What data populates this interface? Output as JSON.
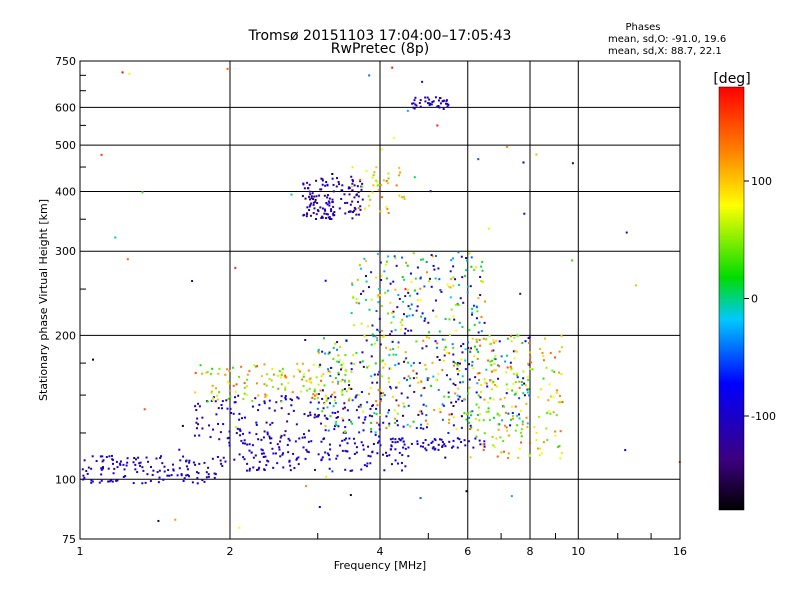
{
  "chart_data": {
    "type": "scatter",
    "title": "Tromsø 20151103 17:04:00–17:05:43",
    "subtitle": "RwPretec (8p)",
    "xlabel": "Frequency [MHz]",
    "ylabel": "Stationary phase Virtual Height [km]",
    "x_scale": "log",
    "y_scale": "log",
    "xlim": [
      1,
      16
    ],
    "ylim": [
      75,
      750
    ],
    "x_ticks": [
      1,
      2,
      4,
      6,
      8,
      10,
      16
    ],
    "x_tick_labels": [
      "1",
      "2",
      "4",
      "6",
      "8",
      "10",
      "16"
    ],
    "y_ticks": [
      75,
      100,
      200,
      300,
      400,
      500,
      600,
      750
    ],
    "y_tick_labels": [
      "75",
      "100",
      "200",
      "300",
      "400",
      "500",
      "600",
      "750"
    ],
    "grid": true,
    "phases_header": "Phases",
    "phases_stats": [
      "mean, sd,O: -91.0, 19.6",
      "mean, sd,X:  88.7, 22.1"
    ],
    "colorbar": {
      "label": "[deg]",
      "ticks": [
        100,
        0,
        -100
      ],
      "tick_labels": [
        "100",
        "0",
        "-100"
      ],
      "range": [
        -180,
        180
      ]
    },
    "series": [
      {
        "x_range": [
          1.0,
          1.9
        ],
        "y_range": [
          98,
          112
        ],
        "phase_range": [
          -120,
          -80
        ],
        "count": 130
      },
      {
        "x_range": [
          1.9,
          4.6
        ],
        "y_range": [
          104,
          122
        ],
        "phase_range": [
          -125,
          -80
        ],
        "count": 150
      },
      {
        "x_range": [
          4.2,
          6.5
        ],
        "y_range": [
          115,
          122
        ],
        "phase_range": [
          -120,
          -85
        ],
        "count": 60
      },
      {
        "x_range": [
          1.7,
          4.0
        ],
        "y_range": [
          120,
          150
        ],
        "phase_range": [
          -135,
          -70
        ],
        "count": 160
      },
      {
        "x_range": [
          1.7,
          3.5
        ],
        "y_range": [
          145,
          175
        ],
        "phase_range": [
          20,
          150
        ],
        "count": 140
      },
      {
        "x_range": [
          3.0,
          8.0
        ],
        "y_range": [
          125,
          200
        ],
        "phase_range": [
          -160,
          140
        ],
        "count": 420
      },
      {
        "x_range": [
          3.5,
          6.5
        ],
        "y_range": [
          200,
          300
        ],
        "phase_range": [
          -140,
          130
        ],
        "count": 200
      },
      {
        "x_range": [
          6.0,
          9.3
        ],
        "y_range": [
          110,
          200
        ],
        "phase_range": [
          20,
          150
        ],
        "count": 160
      },
      {
        "x_range": [
          2.8,
          3.7
        ],
        "y_range": [
          350,
          430
        ],
        "phase_range": [
          -150,
          -80
        ],
        "count": 140
      },
      {
        "x_range": [
          3.5,
          4.5
        ],
        "y_range": [
          360,
          450
        ],
        "phase_range": [
          40,
          140
        ],
        "count": 40
      },
      {
        "x_range": [
          4.6,
          5.5
        ],
        "y_range": [
          595,
          630
        ],
        "phase_range": [
          -130,
          -90
        ],
        "count": 40
      },
      {
        "x_range": [
          1.0,
          16.0
        ],
        "y_range": [
          75,
          750
        ],
        "phase_range": [
          -180,
          180
        ],
        "count": 60
      }
    ]
  }
}
